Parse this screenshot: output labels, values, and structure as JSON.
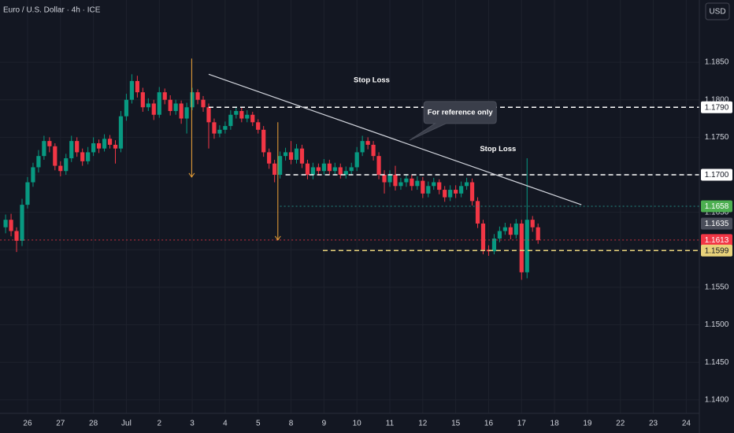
{
  "chart_data": {
    "type": "candlestick",
    "title": "Euro / U.S. Dollar · 4h · ICE",
    "currency": "USD",
    "up_color": "#089981",
    "down_color": "#f23645",
    "grid": true,
    "categories": [
      null,
      null,
      null,
      null,
      "26",
      null,
      null,
      null,
      null,
      null,
      "27",
      null,
      null,
      null,
      null,
      null,
      "28",
      null,
      null,
      null,
      null,
      null,
      "Jul",
      null,
      null,
      null,
      null,
      null,
      "2",
      null,
      null,
      null,
      null,
      null,
      "3",
      null,
      null,
      null,
      null,
      null,
      "4",
      null,
      null,
      null,
      null,
      null,
      "5",
      null,
      null,
      null,
      null,
      null,
      "8",
      null,
      null,
      null,
      null,
      null,
      "9",
      null,
      null,
      null,
      null,
      null,
      "10",
      null,
      null,
      null,
      null,
      null,
      "11",
      null,
      null,
      null,
      null,
      null,
      "12",
      null,
      null,
      null,
      null,
      null,
      "15",
      null,
      null,
      null,
      null,
      null,
      "16",
      null,
      null,
      null,
      null,
      null,
      "17",
      null,
      null,
      null,
      null,
      null,
      "18",
      null,
      null,
      null,
      null,
      null,
      "19",
      null,
      null,
      null,
      null,
      null,
      "22",
      null,
      null,
      null,
      null,
      null,
      "23",
      null,
      null,
      null,
      null,
      null,
      "24",
      null,
      null
    ],
    "open": [
      1.163,
      1.164,
      1.1625,
      1.1612,
      1.166,
      1.169,
      1.171,
      1.1725,
      1.1745,
      1.1738,
      1.1712,
      1.1705,
      1.1722,
      1.1745,
      1.173,
      1.1718,
      1.173,
      1.1742,
      1.1735,
      1.1748,
      1.174,
      1.1735,
      1.1778,
      1.18,
      1.1825,
      1.181,
      1.179,
      1.1795,
      1.178,
      1.181,
      1.18,
      1.1785,
      1.1795,
      1.1775,
      1.179,
      1.181,
      1.18,
      1.179,
      1.177,
      1.1755,
      1.176,
      1.1765,
      1.178,
      1.1785,
      1.1775,
      1.178,
      1.177,
      1.176,
      1.173,
      1.1715,
      1.17,
      1.1725,
      1.173,
      1.172,
      1.1735,
      1.1715,
      1.17,
      1.171,
      1.1705,
      1.1715,
      1.1705,
      1.171,
      1.17,
      1.1705,
      1.171,
      1.173,
      1.1745,
      1.174,
      1.1725,
      1.17,
      1.169,
      1.17,
      1.1685,
      1.169,
      1.1695,
      1.1685,
      1.1692,
      1.1675,
      1.1685,
      1.169,
      1.168,
      1.167,
      1.168,
      1.1675,
      1.1685,
      1.169,
      1.1665,
      1.1635,
      1.16,
      1.1598,
      1.1615,
      1.1625,
      1.163,
      1.162,
      1.1635,
      1.157,
      1.164,
      1.163,
      null,
      null,
      null,
      null,
      null,
      null,
      null,
      null,
      null,
      null,
      null,
      null,
      null,
      null,
      null,
      null,
      null,
      null,
      null,
      null,
      null,
      null,
      null,
      null,
      null,
      null,
      null,
      null,
      null
    ],
    "high": [
      1.1647,
      1.1648,
      1.163,
      1.1668,
      1.1697,
      1.1716,
      1.1733,
      1.1752,
      1.175,
      1.1742,
      1.1718,
      1.1728,
      1.1752,
      1.175,
      1.1735,
      1.1737,
      1.175,
      1.1747,
      1.1754,
      1.1753,
      1.1746,
      1.1785,
      1.1808,
      1.1834,
      1.1832,
      1.1816,
      1.1802,
      1.18,
      1.1817,
      1.1815,
      1.1806,
      1.18,
      1.1799,
      1.1796,
      1.1816,
      1.1814,
      1.1805,
      1.1795,
      1.1775,
      1.1766,
      1.1771,
      1.1786,
      1.1791,
      1.179,
      1.1786,
      1.1784,
      1.1774,
      1.1765,
      1.1735,
      1.172,
      1.1731,
      1.1736,
      1.1745,
      1.1741,
      1.174,
      1.172,
      1.1716,
      1.1715,
      1.1721,
      1.172,
      1.1716,
      1.1715,
      1.1711,
      1.1716,
      1.1737,
      1.1752,
      1.175,
      1.1745,
      1.173,
      1.1706,
      1.1706,
      1.1712,
      1.1696,
      1.1701,
      1.17,
      1.1698,
      1.1697,
      1.1691,
      1.1696,
      1.1694,
      1.1685,
      1.1686,
      1.1686,
      1.1691,
      1.1696,
      1.1695,
      1.167,
      1.164,
      1.1606,
      1.1621,
      1.1631,
      1.1636,
      1.1635,
      1.1641,
      1.164,
      1.1722,
      1.1645,
      1.1635,
      null,
      null,
      null,
      null,
      null,
      null,
      null,
      null,
      null,
      null,
      null,
      null,
      null,
      null,
      null,
      null,
      null,
      null,
      null,
      null,
      null,
      null,
      null,
      null,
      null,
      null,
      null,
      null,
      null
    ],
    "low": [
      1.1622,
      1.1618,
      1.1597,
      1.1605,
      1.1655,
      1.1684,
      1.1703,
      1.172,
      1.173,
      1.1706,
      1.1698,
      1.17,
      1.1717,
      1.1724,
      1.1712,
      1.1714,
      1.1725,
      1.1729,
      1.1731,
      1.1735,
      1.1715,
      1.173,
      1.1772,
      1.1795,
      1.1803,
      1.1784,
      1.1785,
      1.1773,
      1.1776,
      1.1794,
      1.1779,
      1.178,
      1.1768,
      1.1755,
      1.1786,
      1.1794,
      1.1784,
      1.1735,
      1.1748,
      1.175,
      1.1755,
      1.176,
      1.1775,
      1.177,
      1.177,
      1.1765,
      1.1755,
      1.1724,
      1.1708,
      1.169,
      1.1695,
      1.1719,
      1.1714,
      1.1715,
      1.1709,
      1.1694,
      1.1694,
      1.1699,
      1.17,
      1.17,
      1.17,
      1.1695,
      1.1695,
      1.17,
      1.1705,
      1.1725,
      1.1734,
      1.1719,
      1.1694,
      1.1675,
      1.1684,
      1.1679,
      1.168,
      1.1684,
      1.1679,
      1.168,
      1.1669,
      1.167,
      1.168,
      1.1674,
      1.1664,
      1.1665,
      1.1669,
      1.167,
      1.168,
      1.1659,
      1.1629,
      1.1594,
      1.1592,
      1.1594,
      1.161,
      1.162,
      1.1614,
      1.1615,
      1.156,
      1.1562,
      1.1624,
      1.1608,
      null,
      null,
      null,
      null,
      null,
      null,
      null,
      null,
      null,
      null,
      null,
      null,
      null,
      null,
      null,
      null,
      null,
      null,
      null,
      null,
      null,
      null,
      null,
      null,
      null,
      null,
      null,
      null,
      null
    ],
    "close": [
      1.164,
      1.1625,
      1.1612,
      1.166,
      1.169,
      1.171,
      1.1725,
      1.1745,
      1.1738,
      1.1712,
      1.1705,
      1.1722,
      1.1745,
      1.173,
      1.1718,
      1.173,
      1.1742,
      1.1735,
      1.1748,
      1.174,
      1.1735,
      1.1778,
      1.18,
      1.1825,
      1.181,
      1.179,
      1.1795,
      1.178,
      1.181,
      1.18,
      1.1785,
      1.1795,
      1.1775,
      1.179,
      1.181,
      1.18,
      1.179,
      1.177,
      1.1755,
      1.176,
      1.1765,
      1.178,
      1.1785,
      1.1775,
      1.178,
      1.177,
      1.176,
      1.173,
      1.1715,
      1.17,
      1.1725,
      1.173,
      1.172,
      1.1735,
      1.1715,
      1.17,
      1.171,
      1.1705,
      1.1715,
      1.1705,
      1.171,
      1.17,
      1.1705,
      1.171,
      1.173,
      1.1745,
      1.174,
      1.1725,
      1.17,
      1.169,
      1.17,
      1.1685,
      1.169,
      1.1695,
      1.1685,
      1.1692,
      1.1675,
      1.1685,
      1.169,
      1.168,
      1.167,
      1.168,
      1.1675,
      1.1685,
      1.169,
      1.1665,
      1.1635,
      1.16,
      1.1598,
      1.1615,
      1.1625,
      1.163,
      1.162,
      1.1635,
      1.157,
      1.164,
      1.163,
      1.1613,
      null,
      null,
      null,
      null,
      null,
      null,
      null,
      null,
      null,
      null,
      null,
      null,
      null,
      null,
      null,
      null,
      null,
      null,
      null,
      null,
      null,
      null,
      null,
      null,
      null,
      null,
      null,
      null,
      null
    ],
    "ylim": [
      1.1382,
      1.1933
    ],
    "yticks": [
      {
        "value": 1.14,
        "label": "1.1400"
      },
      {
        "value": 1.145,
        "label": "1.1450"
      },
      {
        "value": 1.15,
        "label": "1.1500"
      },
      {
        "value": 1.155,
        "label": "1.1550"
      },
      {
        "value": 1.16,
        "label": "1.1600"
      },
      {
        "value": 1.165,
        "label": "1.1650"
      },
      {
        "value": 1.17,
        "label": "1.1700"
      },
      {
        "value": 1.175,
        "label": "1.1750"
      },
      {
        "value": 1.18,
        "label": "1.1800"
      },
      {
        "value": 1.185,
        "label": "1.1850"
      }
    ],
    "levels": [
      {
        "value": 1.179,
        "label": "1.1790",
        "color": "#ffffff",
        "text_color": "#131722",
        "style": "dashed",
        "from": 37
      },
      {
        "value": 1.17,
        "label": "1.1700",
        "color": "#ffffff",
        "text_color": "#131722",
        "style": "dashed",
        "from": 51
      },
      {
        "value": 1.1658,
        "label": "1.1658",
        "color": "#4caf50",
        "line_color": "#26a69a",
        "text_color": "#ffffff",
        "style": "dotted",
        "from": 50
      },
      {
        "value": 1.1635,
        "label": "1.1635",
        "color": "#4a4e5a",
        "text_color": "#ffffff"
      },
      {
        "value": 1.1613,
        "label": "1.1613",
        "color": "#f23645",
        "text_color": "#ffffff",
        "style": "dotted",
        "from": -1
      },
      {
        "value": 1.1599,
        "label": "1.1599",
        "color": "#e8d27a",
        "text_color": "#131722",
        "style": "dashed",
        "from": 57.8
      }
    ],
    "trendline": {
      "x": [
        37,
        104.9
      ],
      "y": [
        1.1834,
        1.166
      ],
      "color": "#d1d4dc"
    },
    "arrows": [
      {
        "x": 33.9,
        "y": [
          1.1855,
          1.1697
        ],
        "color": "#f0a437"
      },
      {
        "x": 49.6,
        "y": [
          1.177,
          1.1613
        ],
        "color": "#f0a437"
      }
    ],
    "annotations": [
      {
        "text": "Stop Loss",
        "x": 66.7,
        "y": 1.1826
      },
      {
        "text": "Stop Loss",
        "x": 89.7,
        "y": 1.1734
      }
    ],
    "callout": {
      "text": "For reference only",
      "x": 82.8,
      "y": 1.1783,
      "tip_x": 73.6,
      "tip_y": 1.1746
    }
  }
}
